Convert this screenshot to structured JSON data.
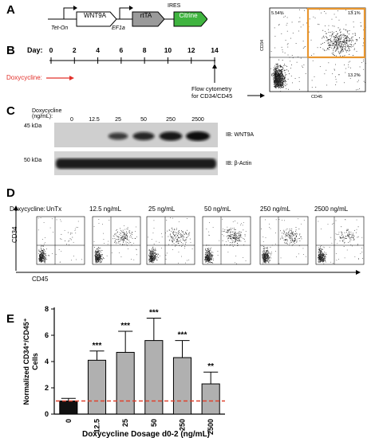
{
  "panels": {
    "A": "A",
    "B": "B",
    "C": "C",
    "D": "D",
    "E": "E"
  },
  "construct": {
    "promoter1": "Tet-On",
    "gene1": "WNT9A",
    "promoter2": "EF1a",
    "gene2": "rtTA",
    "ires": "IRES",
    "gene3": "Citrine"
  },
  "timeline": {
    "day_label": "Day:",
    "days": [
      "0",
      "2",
      "4",
      "6",
      "8",
      "10",
      "12",
      "14"
    ],
    "dox_label": "Doxycycline:",
    "flow_label_line1": "Flow cytometry",
    "flow_label_line2": "for CD34/CD45"
  },
  "scatter_example": {
    "ylabel": "CD34",
    "xlabel": "CD45",
    "q_ul": "5.54%",
    "q_ur": "13.1%",
    "q_ll": "68.1",
    "q_lr": "13.2%",
    "ticks": [
      "0",
      "10³",
      "10⁴",
      "10⁵"
    ],
    "gate_color": "#e8962e"
  },
  "blot": {
    "dox_label_line1": "Doxycycline",
    "dox_label_line2": "(ng/mL):",
    "lanes": [
      "0",
      "12.5",
      "25",
      "50",
      "250",
      "2500"
    ],
    "marker_top": "45 kDa",
    "marker_bottom": "50 kDa",
    "ib_top": "IB: WNT9A",
    "ib_bottom": "IB: β-Actin"
  },
  "flow_panel": {
    "dox_label": "Doxycycline:",
    "conditions": [
      "UnTx",
      "12.5 ng/mL",
      "25 ng/mL",
      "50 ng/mL",
      "250 ng/mL",
      "2500 ng/mL"
    ],
    "ylabel": "CD34",
    "xlabel": "CD45"
  },
  "chart_data": {
    "type": "bar",
    "categories": [
      "0",
      "12.5",
      "25",
      "50",
      "250",
      "2500"
    ],
    "values": [
      1.0,
      4.1,
      4.7,
      5.6,
      4.3,
      2.3
    ],
    "errors": [
      0.2,
      0.7,
      1.6,
      1.7,
      1.3,
      0.9
    ],
    "significance": [
      "",
      "***",
      "***",
      "***",
      "***",
      "**"
    ],
    "bar_colors": [
      "#111111",
      "#b0b0b0",
      "#b0b0b0",
      "#b0b0b0",
      "#b0b0b0",
      "#b0b0b0"
    ],
    "ylabel_line1": "Normalized CD34⁺/CD45⁺",
    "ylabel_line2": "Cells",
    "xlabel": "Doxycycline Dosage d0-2 (ng/mL)",
    "yticks": [
      "0",
      "2",
      "4",
      "6",
      "8"
    ],
    "ylim": [
      0,
      8
    ],
    "reference_line": 1.0,
    "reference_color": "#e0402c"
  }
}
